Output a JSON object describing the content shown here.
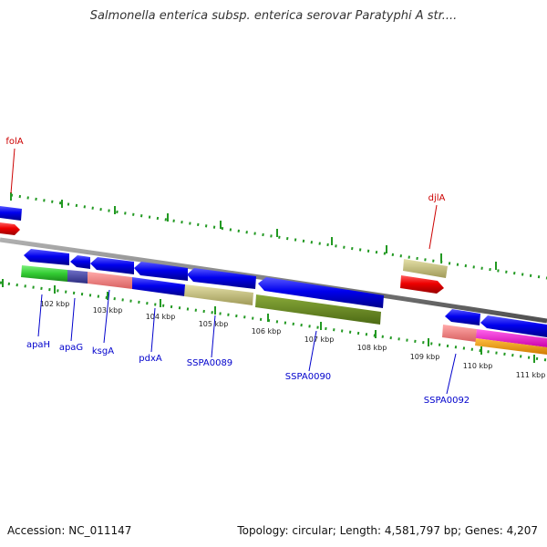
{
  "title": "Salmonella enterica subsp. enterica serovar Paratyphi A str....",
  "footer": {
    "accession": "Accession: NC_011147",
    "summary": "Topology: circular; Length: 4,581,797 bp; Genes: 4,207"
  },
  "colors": {
    "forward_cds": "#0000ee",
    "reverse_cds": "#ee0000",
    "backbone": "#888888",
    "ticks": "#229922",
    "forward_label": "#cc0000",
    "reverse_label": "#0000cc"
  },
  "scale_labels": [
    "102 kbp",
    "103 kbp",
    "104 kbp",
    "105 kbp",
    "106 kbp",
    "107 kbp",
    "108 kbp",
    "109 kbp",
    "110 kbp",
    "111 kbp"
  ],
  "gene_labels_forward": [
    "folA",
    "djlA"
  ],
  "gene_labels_reverse": [
    "apaH",
    "apaG",
    "ksgA",
    "pdxA",
    "SSPA0089",
    "SSPA0090",
    "SSPA0092"
  ]
}
